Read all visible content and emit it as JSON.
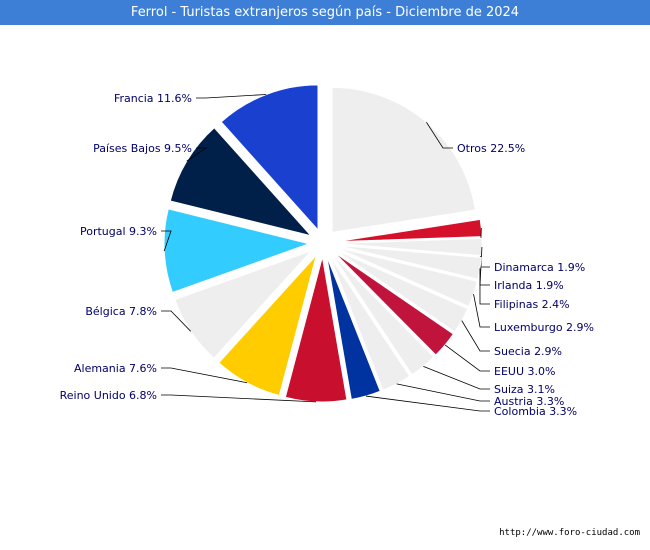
{
  "title": "Ferrol - Turistas extranjeros según país - Diciembre de 2024",
  "source_url": "http://www.foro-ciudad.com",
  "chart_data": {
    "type": "pie",
    "title": "Ferrol - Turistas extranjeros según país - Diciembre de 2024",
    "slices": [
      {
        "label": "Otros 22.5%",
        "name": "Otros",
        "value": 22.5,
        "color": "#eeeeee"
      },
      {
        "label": "Dinamarca 1.9%",
        "name": "Dinamarca",
        "value": 1.9,
        "color": "#d4102a"
      },
      {
        "label": "Irlanda 1.9%",
        "name": "Irlanda",
        "value": 1.9,
        "color": "#eeeeee"
      },
      {
        "label": "Filipinas 2.4%",
        "name": "Filipinas",
        "value": 2.4,
        "color": "#eeeeee"
      },
      {
        "label": "Luxemburgo 2.9%",
        "name": "Luxemburgo",
        "value": 2.9,
        "color": "#eeeeee"
      },
      {
        "label": "Suecia 2.9%",
        "name": "Suecia",
        "value": 2.9,
        "color": "#eeeeee"
      },
      {
        "label": "EEUU 3.0%",
        "name": "EEUU",
        "value": 3.0,
        "color": "#c0143c"
      },
      {
        "label": "Suiza 3.1%",
        "name": "Suiza",
        "value": 3.1,
        "color": "#eeeeee"
      },
      {
        "label": "Austria 3.3%",
        "name": "Austria",
        "value": 3.3,
        "color": "#eeeeee"
      },
      {
        "label": "Colombia 3.3%",
        "name": "Colombia",
        "value": 3.3,
        "color": "#0033a0"
      },
      {
        "label": "Reino Unido 6.8%",
        "name": "Reino Unido",
        "value": 6.8,
        "color": "#c8102e"
      },
      {
        "label": "Alemania 7.6%",
        "name": "Alemania",
        "value": 7.6,
        "color": "#ffcc00"
      },
      {
        "label": "Bélgica 7.8%",
        "name": "Bélgica",
        "value": 7.8,
        "color": "#eeeeee"
      },
      {
        "label": "Portugal 9.3%",
        "name": "Portugal",
        "value": 9.3,
        "color": "#33ccff"
      },
      {
        "label": "Países Bajos 9.5%",
        "name": "Países Bajos",
        "value": 9.5,
        "color": "#00204a"
      },
      {
        "label": "Francia 11.6%",
        "name": "Francia",
        "value": 11.6,
        "color": "#1a40d0"
      }
    ]
  }
}
